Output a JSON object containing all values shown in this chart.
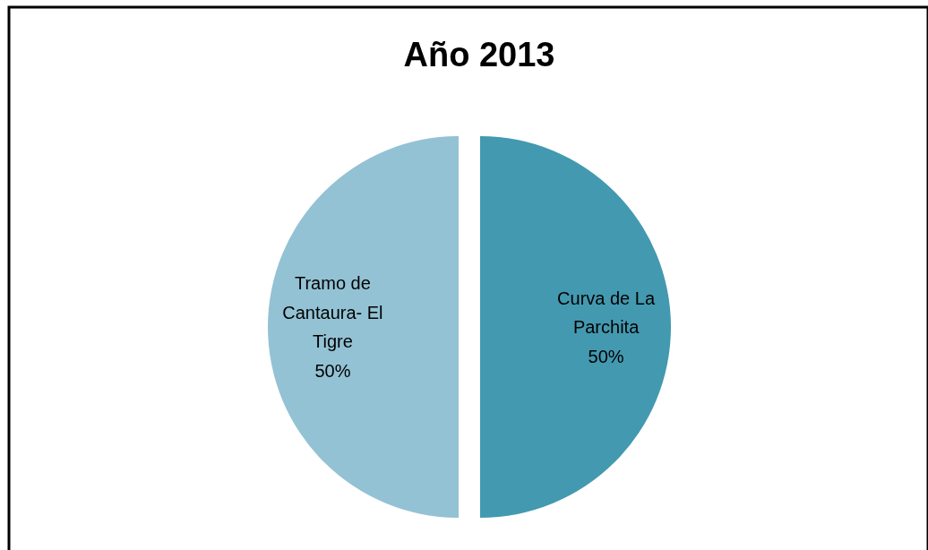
{
  "chart_data": {
    "type": "pie",
    "title": "Año 2013",
    "categories": [
      "Curva de La Parchita",
      "Tramo de Cantaura- El Tigre"
    ],
    "values": [
      50,
      50
    ],
    "value_labels": [
      "50%",
      "50%"
    ],
    "colors": [
      "#4399b0",
      "#93c2d4"
    ]
  }
}
